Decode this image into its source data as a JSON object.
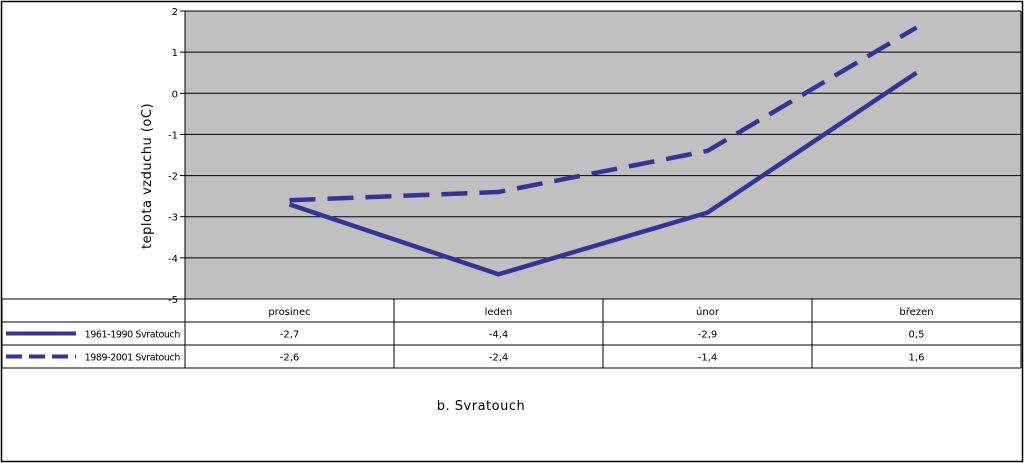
{
  "chart_data": {
    "type": "line",
    "ylabel": "teplota vzduchu (oC)",
    "caption": "b. Svratouch",
    "categories": [
      "prosinec",
      "leden",
      "únor",
      "březen"
    ],
    "ylim": [
      -5,
      2
    ],
    "yticks": [
      "2",
      "1",
      "0",
      "-1",
      "-2",
      "-3",
      "-4",
      "-5"
    ],
    "grid": true,
    "legend": "data-table-left",
    "series": [
      {
        "name": "1961-1990 Svratouch",
        "values": [
          -2.7,
          -4.4,
          -2.9,
          0.5
        ],
        "labels": [
          "-2,7",
          "-4,4",
          "-2,9",
          "0,5"
        ],
        "style": "solid"
      },
      {
        "name": "1989-2001 Svratouch",
        "values": [
          -2.6,
          -2.4,
          -1.4,
          1.6
        ],
        "labels": [
          "-2,6",
          "-2,4",
          "-1,4",
          "1,6"
        ],
        "style": "dashed"
      }
    ],
    "colors": {
      "line": "#33339a",
      "plot_bg": "#c0c0c0",
      "grid": "#000000"
    }
  }
}
